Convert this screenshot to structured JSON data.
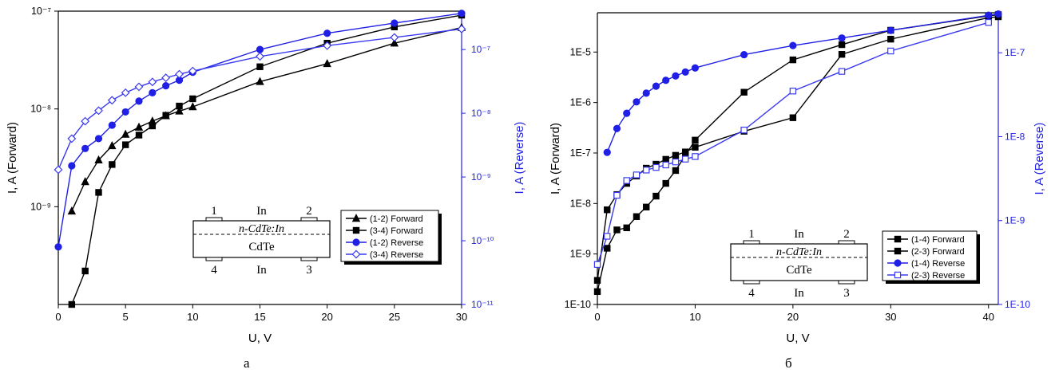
{
  "colors": {
    "black": "#000000",
    "blue": "#1f1fe6",
    "blue_light": "#3a3af0"
  },
  "figure_captions": [
    "а",
    "б"
  ],
  "chart_data": [
    {
      "type": "line",
      "xlabel": "U, V",
      "ylabel_left": "I, A (Forward)",
      "ylabel_right": "I, A (Reverse)",
      "xlim": [
        0,
        30
      ],
      "x_ticks": [
        0,
        5,
        10,
        15,
        20,
        25,
        30
      ],
      "x_tick_labels": [
        "0",
        "5",
        "10",
        "15",
        "20",
        "25",
        "30"
      ],
      "y_left_scale": "log",
      "y_left_lim": [
        1e-10,
        1e-07
      ],
      "y_left_ticks": [
        1e-09,
        1e-08,
        1e-07
      ],
      "y_left_tick_labels": [
        "10⁻⁹",
        "10⁻⁸",
        "10⁻⁷"
      ],
      "y_right_scale": "log",
      "y_right_lim": [
        1e-11,
        4e-07
      ],
      "y_right_ticks": [
        1e-11,
        1e-10,
        1e-09,
        1e-08,
        1e-07
      ],
      "y_right_tick_labels": [
        "10⁻¹¹",
        "10⁻¹⁰",
        "10⁻⁹",
        "10⁻⁸",
        "10⁻⁷"
      ],
      "legend_position": "bottom-right",
      "series": [
        {
          "name": "(1-2) Forward",
          "axis": "left",
          "color": "#000000",
          "marker": "triangle",
          "x": [
            1,
            2,
            3,
            4,
            5,
            6,
            7,
            8,
            9,
            10,
            15,
            20,
            25,
            30
          ],
          "y": [
            9e-10,
            1.8e-09,
            3e-09,
            4.2e-09,
            5.5e-09,
            6.5e-09,
            7.5e-09,
            8.5e-09,
            9.5e-09,
            1.05e-08,
            1.9e-08,
            2.9e-08,
            4.7e-08,
            6.8e-08
          ]
        },
        {
          "name": "(3-4) Forward",
          "axis": "left",
          "color": "#000000",
          "marker": "square",
          "x": [
            1,
            2,
            3,
            4,
            5,
            6,
            7,
            8,
            9,
            10,
            15,
            20,
            25,
            30
          ],
          "y": [
            1e-10,
            2.2e-10,
            1.4e-09,
            2.7e-09,
            4.3e-09,
            5.4e-09,
            6.7e-09,
            8.6e-09,
            1.07e-08,
            1.27e-08,
            2.7e-08,
            4.7e-08,
            6.9e-08,
            9.1e-08
          ]
        },
        {
          "name": "(1-2) Reverse",
          "axis": "right",
          "color": "#1f1fe6",
          "marker": "circle",
          "x": [
            0,
            1,
            2,
            3,
            4,
            5,
            6,
            7,
            8,
            9,
            10,
            15,
            20,
            25,
            30
          ],
          "y": [
            8e-11,
            1.5e-09,
            2.8e-09,
            4e-09,
            6.5e-09,
            1.05e-08,
            1.55e-08,
            2.1e-08,
            2.7e-08,
            3.3e-08,
            4.4e-08,
            1e-07,
            1.8e-07,
            2.6e-07,
            3.7e-07
          ]
        },
        {
          "name": "(3-4) Reverse",
          "axis": "right",
          "color": "#3a3af0",
          "marker": "diamond-open",
          "x": [
            0,
            1,
            2,
            3,
            4,
            5,
            6,
            7,
            8,
            9,
            10,
            15,
            20,
            25,
            30
          ],
          "y": [
            1.3e-09,
            4e-09,
            7.5e-09,
            1.1e-08,
            1.6e-08,
            2.1e-08,
            2.6e-08,
            3.1e-08,
            3.6e-08,
            4.1e-08,
            4.6e-08,
            7.8e-08,
            1.15e-07,
            1.55e-07,
            2.1e-07
          ]
        }
      ]
    },
    {
      "type": "line",
      "xlabel": "U, V",
      "ylabel_left": "I, A (Forward)",
      "ylabel_right": "I, A (Reverse)",
      "xlim": [
        0,
        41
      ],
      "x_ticks": [
        0,
        10,
        20,
        30,
        40
      ],
      "x_tick_labels": [
        "0",
        "10",
        "20",
        "30",
        "40"
      ],
      "y_left_scale": "log",
      "y_left_lim": [
        1e-10,
        6e-05
      ],
      "y_left_ticks": [
        1e-10,
        1e-09,
        1e-08,
        1e-07,
        1e-06,
        1e-05
      ],
      "y_left_tick_labels": [
        "1E-10",
        "1E-9",
        "1E-8",
        "1E-7",
        "1E-6",
        "1E-5"
      ],
      "y_right_scale": "log",
      "y_right_lim": [
        1e-10,
        3e-07
      ],
      "y_right_ticks": [
        1e-10,
        1e-09,
        1e-08,
        1e-07
      ],
      "y_right_tick_labels": [
        "1E-10",
        "1E-9",
        "1E-8",
        "1E-7"
      ],
      "legend_position": "bottom-right",
      "series": [
        {
          "name": "(1-4) Forward",
          "axis": "left",
          "color": "#000000",
          "marker": "square",
          "x": [
            0,
            1,
            2,
            3,
            4,
            5,
            6,
            7,
            8,
            9,
            10,
            15,
            20,
            25,
            30,
            40,
            41
          ],
          "y": [
            1.8e-10,
            1.3e-09,
            3e-09,
            3.3e-09,
            5.5e-09,
            8.5e-09,
            1.4e-08,
            2.5e-08,
            4.5e-08,
            9e-08,
            1.8e-07,
            1.6e-06,
            7e-06,
            1.4e-05,
            2.7e-05,
            5.2e-05,
            5.5e-05
          ]
        },
        {
          "name": "(2-3) Forward",
          "axis": "left",
          "color": "#000000",
          "marker": "square",
          "x": [
            0,
            1,
            2,
            3,
            4,
            5,
            6,
            7,
            8,
            9,
            10,
            15,
            20,
            25,
            30,
            40,
            41
          ],
          "y": [
            3e-10,
            7.5e-09,
            1.5e-08,
            2.5e-08,
            3.5e-08,
            5e-08,
            6e-08,
            7.5e-08,
            9e-08,
            1.05e-07,
            1.3e-07,
            2.7e-07,
            5e-07,
            9e-06,
            1.8e-05,
            4.8e-05,
            5e-05
          ]
        },
        {
          "name": "(1-4) Reverse",
          "axis": "right",
          "color": "#1f1fe6",
          "marker": "circle",
          "x": [
            1,
            2,
            3,
            4,
            5,
            6,
            7,
            8,
            9,
            10,
            15,
            20,
            25,
            30,
            40,
            41
          ],
          "y": [
            6.5e-09,
            1.25e-08,
            1.9e-08,
            2.6e-08,
            3.3e-08,
            4e-08,
            4.7e-08,
            5.3e-08,
            5.9e-08,
            6.6e-08,
            9.5e-08,
            1.22e-07,
            1.5e-07,
            1.85e-07,
            2.8e-07,
            2.9e-07
          ]
        },
        {
          "name": "(2-3) Reverse",
          "axis": "right",
          "color": "#3a3af0",
          "marker": "square-open",
          "x": [
            0,
            1,
            2,
            3,
            4,
            5,
            6,
            7,
            8,
            9,
            10,
            15,
            20,
            25,
            30,
            40
          ],
          "y": [
            3e-10,
            6.5e-10,
            2e-09,
            3e-09,
            3.5e-09,
            4e-09,
            4.3e-09,
            4.6e-09,
            5e-09,
            5.4e-09,
            5.8e-09,
            1.2e-08,
            3.5e-08,
            6e-08,
            1.05e-07,
            2.3e-07
          ]
        }
      ]
    }
  ],
  "insets": [
    {
      "contact_top_left": "1",
      "contact_top_right": "2",
      "metal_top": "In",
      "layer": "n-CdTe:In",
      "substrate": "CdTe",
      "contact_bottom_left": "4",
      "contact_bottom_right": "3",
      "metal_bottom": "In"
    },
    {
      "contact_top_left": "1",
      "contact_top_right": "2",
      "metal_top": "In",
      "layer": "n-CdTe:In",
      "substrate": "CdTe",
      "contact_bottom_left": "4",
      "contact_bottom_right": "3",
      "metal_bottom": "In"
    }
  ]
}
